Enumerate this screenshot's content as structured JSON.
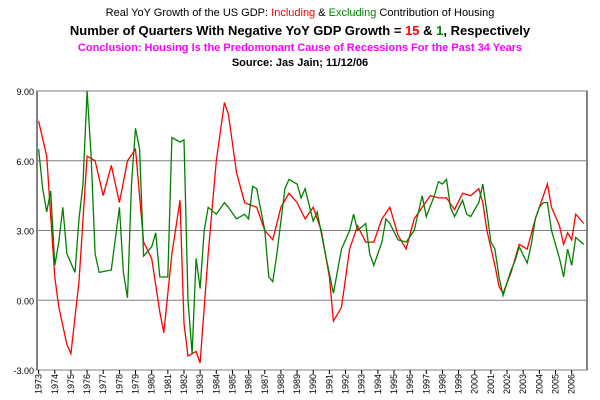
{
  "chart_data": {
    "type": "line",
    "title": [
      "Real YoY Growth of the US GDP: ",
      " & ",
      " Contribution of Housing"
    ],
    "subtitle": [
      "Number of Quarters With Negative YoY GDP Growth = ",
      "15",
      " & ",
      "1",
      ", Respectively"
    ],
    "conclusion": "Conclusion: Housing Is the Predomonant Cause of Recessions For the Past 34 Years",
    "conclusion_color": "#ff00ff",
    "source": "Source: Jas Jain; 11/12/06",
    "series": [
      {
        "name": "Including",
        "color": "#ff0000",
        "x": [
          1973.0,
          1973.5,
          1974.0,
          1974.25,
          1974.75,
          1975.0,
          1975.5,
          1976.0,
          1976.5,
          1977.0,
          1977.5,
          1978.0,
          1978.5,
          1979.0,
          1979.5,
          1980.0,
          1980.5,
          1980.75,
          1981.25,
          1981.75,
          1982.0,
          1982.25,
          1982.75,
          1983.0,
          1983.5,
          1984.0,
          1984.5,
          1984.75,
          1985.25,
          1985.75,
          1986.5,
          1987.0,
          1987.5,
          1988.0,
          1988.5,
          1989.0,
          1989.5,
          1990.0,
          1990.5,
          1991.0,
          1991.25,
          1991.75,
          1992.25,
          1992.75,
          1993.25,
          1993.75,
          1994.25,
          1994.75,
          1995.25,
          1995.75,
          1996.25,
          1996.75,
          1997.25,
          1997.75,
          1998.25,
          1998.75,
          1999.25,
          1999.75,
          2000.25,
          2000.5,
          2000.75,
          2001.25,
          2001.5,
          2001.75,
          2002.25,
          2002.75,
          2003.25,
          2003.75,
          2004.25,
          2004.5,
          2004.75,
          2005.25,
          2005.5,
          2005.75,
          2006.0,
          2006.25,
          2006.75
        ],
        "values": [
          7.7,
          6.2,
          1.0,
          -0.3,
          -1.9,
          -2.3,
          0.8,
          6.2,
          6.0,
          4.5,
          5.8,
          4.2,
          6.0,
          6.5,
          2.5,
          1.8,
          -0.5,
          -1.4,
          2.0,
          4.3,
          -1.0,
          -2.4,
          -2.2,
          -2.7,
          2.0,
          6.0,
          8.5,
          8.0,
          5.5,
          4.2,
          4.0,
          3.0,
          2.6,
          4.0,
          4.6,
          4.2,
          3.5,
          4.0,
          3.0,
          1.0,
          -0.9,
          -0.3,
          2.2,
          3.2,
          2.5,
          2.5,
          3.5,
          4.0,
          2.8,
          2.2,
          3.5,
          4.0,
          4.5,
          4.4,
          4.4,
          3.9,
          4.6,
          4.5,
          4.8,
          4.2,
          3.0,
          1.5,
          0.6,
          0.3,
          1.2,
          2.4,
          2.2,
          3.5,
          4.5,
          5.0,
          4.0,
          3.2,
          2.4,
          2.9,
          2.6,
          3.7,
          3.3
        ]
      },
      {
        "name": "Excluding",
        "color": "#008000",
        "x": [
          1973.0,
          1973.25,
          1973.5,
          1973.75,
          1974.0,
          1974.25,
          1974.5,
          1974.75,
          1975.25,
          1975.5,
          1975.75,
          1976.0,
          1976.25,
          1976.5,
          1976.75,
          1977.5,
          1978.0,
          1978.25,
          1978.5,
          1978.75,
          1979.0,
          1979.25,
          1979.5,
          1980.0,
          1980.25,
          1980.5,
          1981.0,
          1981.25,
          1981.75,
          1982.0,
          1982.25,
          1982.5,
          1982.75,
          1983.0,
          1983.25,
          1983.5,
          1984.0,
          1984.5,
          1984.75,
          1985.25,
          1985.75,
          1986.0,
          1986.25,
          1986.5,
          1987.0,
          1987.25,
          1987.5,
          1987.75,
          1988.25,
          1988.5,
          1989.0,
          1989.25,
          1989.5,
          1990.0,
          1990.25,
          1990.75,
          1991.25,
          1991.75,
          1992.25,
          1992.5,
          1992.75,
          1993.25,
          1993.5,
          1993.75,
          1994.25,
          1994.5,
          1994.75,
          1995.25,
          1995.75,
          1996.25,
          1996.75,
          1997.0,
          1997.5,
          1997.75,
          1998.0,
          1998.25,
          1998.5,
          1998.75,
          1999.25,
          1999.5,
          1999.75,
          2000.25,
          2000.5,
          2000.75,
          2001.0,
          2001.25,
          2001.5,
          2001.75,
          2002.25,
          2002.5,
          2002.75,
          2003.25,
          2003.5,
          2003.75,
          2004.0,
          2004.25,
          2004.5,
          2004.75,
          2005.25,
          2005.5,
          2005.75,
          2006.0,
          2006.25,
          2006.75
        ],
        "values": [
          6.5,
          4.8,
          3.8,
          4.7,
          1.5,
          2.5,
          4.0,
          2.0,
          1.2,
          3.5,
          5.0,
          9.0,
          6.2,
          2.0,
          1.2,
          1.3,
          4.0,
          1.2,
          0.1,
          5.0,
          7.4,
          6.5,
          1.9,
          2.3,
          2.9,
          1.0,
          1.0,
          7.0,
          6.8,
          6.9,
          0.0,
          -2.3,
          1.8,
          0.5,
          3.0,
          4.0,
          3.7,
          4.2,
          4.0,
          3.5,
          3.7,
          3.5,
          4.9,
          4.8,
          3.0,
          1.0,
          0.8,
          2.0,
          4.8,
          5.2,
          5.0,
          4.4,
          4.8,
          3.4,
          3.8,
          2.0,
          0.3,
          2.2,
          3.0,
          3.7,
          3.0,
          3.3,
          2.0,
          1.5,
          2.5,
          3.5,
          3.3,
          2.6,
          2.5,
          3.0,
          4.5,
          3.6,
          4.5,
          5.1,
          5.0,
          5.2,
          4.0,
          3.6,
          4.3,
          3.7,
          3.6,
          4.2,
          5.0,
          3.8,
          2.5,
          2.2,
          1.0,
          0.2,
          1.3,
          1.7,
          2.3,
          1.6,
          2.4,
          3.5,
          4.0,
          4.2,
          4.2,
          3.0,
          1.8,
          1.0,
          2.2,
          1.5,
          2.7,
          2.4
        ]
      }
    ],
    "xlim": [
      1972.9,
      2006.95
    ],
    "xticks": [
      1973,
      1974,
      1975,
      1976,
      1977,
      1978,
      1979,
      1980,
      1981,
      1982,
      1983,
      1984,
      1985,
      1986,
      1987,
      1988,
      1989,
      1990,
      1991,
      1992,
      1993,
      1994,
      1995,
      1996,
      1997,
      1998,
      1999,
      2000,
      2001,
      2002,
      2003,
      2004,
      2005,
      2006
    ],
    "ylim": [
      -3,
      9
    ],
    "yticks": [
      {
        "value": -3,
        "label": "-3.00"
      },
      {
        "value": 0,
        "label": "0.00"
      },
      {
        "value": 3,
        "label": "3.00"
      },
      {
        "value": 6,
        "label": "6.00"
      },
      {
        "value": 9,
        "label": "9.00"
      }
    ],
    "grid": true
  }
}
